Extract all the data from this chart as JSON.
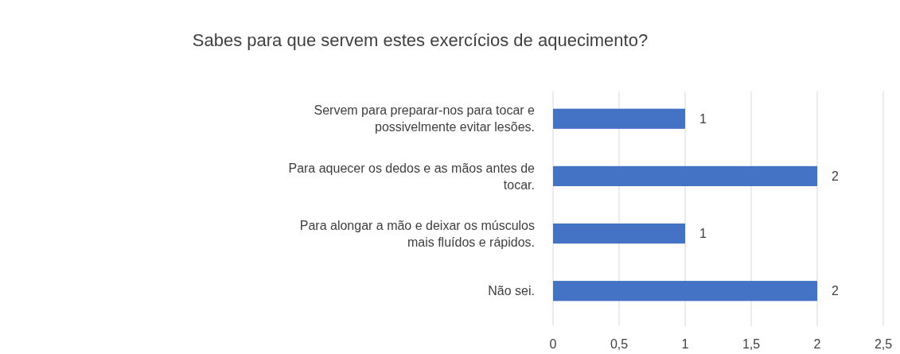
{
  "chart_data": {
    "type": "bar",
    "orientation": "horizontal",
    "title": "Sabes para que servem estes exercícios de aquecimento?",
    "categories": [
      "Servem para preparar-nos para tocar e possivelmente evitar lesões.",
      "Para aquecer os dedos e as mãos antes de tocar.",
      "Para alongar a mão e deixar os músculos mais fluídos e rápidos.",
      "Não sei."
    ],
    "values": [
      1,
      2,
      1,
      2
    ],
    "color": "#4472c4",
    "xlim": [
      0,
      2.5
    ],
    "xticks": [
      0,
      {
        "value": 0.5,
        "label": "0,5"
      },
      1,
      {
        "value": 1.5,
        "label": "1,5"
      },
      2,
      {
        "value": 2.5,
        "label": "2,5"
      }
    ],
    "grid": "x",
    "data_labels": true
  }
}
